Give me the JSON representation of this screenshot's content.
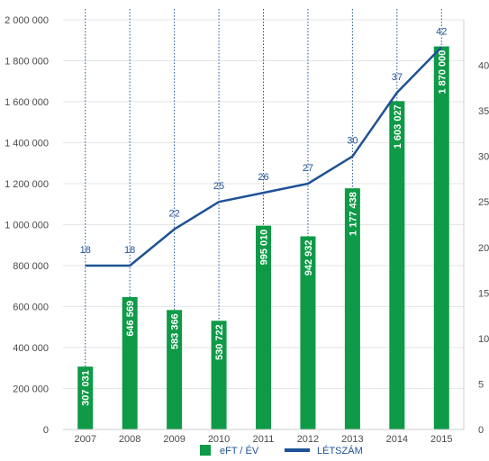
{
  "chart_data": {
    "type": "bar",
    "categories": [
      "2007",
      "2008",
      "2009",
      "2010",
      "2011",
      "2012",
      "2013",
      "2014",
      "2015"
    ],
    "series": [
      {
        "name": "eFT / ÉV",
        "type": "bar",
        "axis": "left",
        "color": "#0e9a47",
        "values": [
          307031,
          646569,
          583366,
          530722,
          995010,
          942932,
          1177438,
          1603027,
          1870000
        ],
        "labels": [
          "307 031",
          "646 569",
          "583 366",
          "530 722",
          "995 010",
          "942 932",
          "1 177 438",
          "1 603 027",
          "1 870 000"
        ]
      },
      {
        "name": "LÉTSZÁM",
        "type": "line",
        "axis": "right",
        "color": "#1f5296",
        "values": [
          18,
          18,
          22,
          25,
          26,
          27,
          30,
          37,
          42
        ],
        "labels": [
          "18",
          "18",
          "22",
          "25",
          "26",
          "27",
          "30",
          "37",
          "42"
        ]
      }
    ],
    "y_left": {
      "range": [
        0,
        2000000
      ],
      "ticks": [
        0,
        200000,
        400000,
        600000,
        800000,
        1000000,
        1200000,
        1400000,
        1600000,
        1800000,
        2000000
      ],
      "tick_labels": [
        "0",
        "200 000",
        "400 000",
        "600 000",
        "800 000",
        "1 000 000",
        "1 200 000",
        "1 400 000",
        "1 600 000",
        "1 800 000",
        "2 000 000"
      ]
    },
    "y_right": {
      "range": [
        0,
        45
      ],
      "ticks": [
        0,
        5,
        10,
        15,
        20,
        25,
        30,
        35,
        40
      ],
      "tick_labels": [
        "0",
        "5",
        "10",
        "15",
        "20",
        "25",
        "30",
        "35",
        "40"
      ]
    },
    "grid": true,
    "vertical_dotted_lines": true,
    "legend_position": "bottom",
    "legend": [
      {
        "label": "eFT / ÉV",
        "color": "#0e9a47",
        "symbol": "square"
      },
      {
        "label": "LÉTSZÁM",
        "color": "#1f5296",
        "symbol": "line"
      }
    ]
  }
}
